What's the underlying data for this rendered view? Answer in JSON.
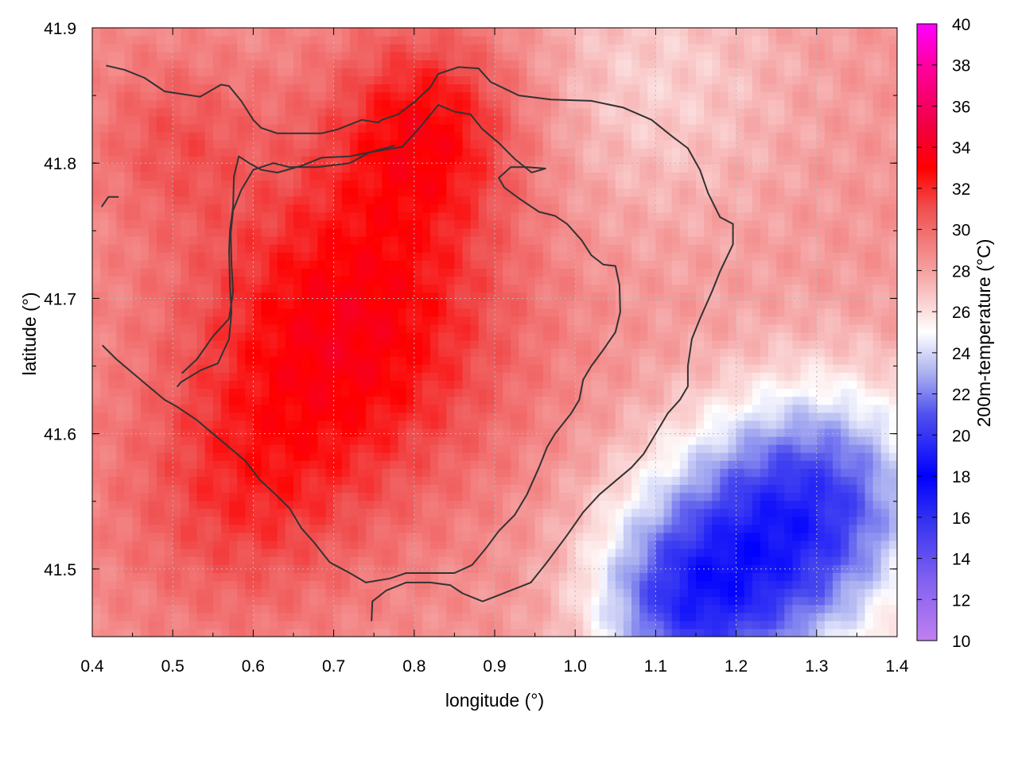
{
  "chart_data": {
    "type": "heatmap",
    "title": "",
    "xlabel": "longitude (°)",
    "ylabel": "latitude (°)",
    "colorbar_label": "200m-temperature (°C)",
    "xlim": [
      0.4,
      1.4
    ],
    "ylim": [
      41.45,
      41.9
    ],
    "x_ticks": [
      "0.4",
      "0.5",
      "0.6",
      "0.7",
      "0.8",
      "0.9",
      "1.0",
      "1.1",
      "1.2",
      "1.3",
      "1.4"
    ],
    "y_ticks": [
      "41.5",
      "41.6",
      "41.7",
      "41.8",
      "41.9"
    ],
    "y_tick_values": [
      41.5,
      41.6,
      41.7,
      41.8,
      41.9
    ],
    "colorbar_ticks": [
      "10",
      "12",
      "14",
      "16",
      "18",
      "20",
      "22",
      "24",
      "26",
      "28",
      "30",
      "32",
      "34",
      "36",
      "38",
      "40"
    ],
    "colorbar_range": [
      10,
      40
    ],
    "grid": true,
    "colormap": [
      {
        "value": 10,
        "color": "#c080f0"
      },
      {
        "value": 13,
        "color": "#8060f0"
      },
      {
        "value": 16,
        "color": "#3030f0"
      },
      {
        "value": 18,
        "color": "#0000ff"
      },
      {
        "value": 21,
        "color": "#5050ee"
      },
      {
        "value": 23,
        "color": "#aab0f0"
      },
      {
        "value": 25,
        "color": "#ffffff"
      },
      {
        "value": 28,
        "color": "#f5a0a0"
      },
      {
        "value": 31,
        "color": "#f05050"
      },
      {
        "value": 33,
        "color": "#ff0000"
      },
      {
        "value": 35,
        "color": "#f00040"
      },
      {
        "value": 38,
        "color": "#ff00a0"
      },
      {
        "value": 40,
        "color": "#ff00ff"
      }
    ],
    "field_model": {
      "base_temperature": 28.5,
      "hotspots": [
        {
          "lon": 0.72,
          "lat": 41.68,
          "amplitude": 5.0,
          "radius": 0.2
        },
        {
          "lon": 0.82,
          "lat": 41.83,
          "amplitude": 4.0,
          "radius": 0.12
        },
        {
          "lon": 0.5,
          "lat": 41.82,
          "amplitude": 2.0,
          "radius": 0.1
        },
        {
          "lon": 0.58,
          "lat": 41.55,
          "amplitude": 2.5,
          "radius": 0.15
        }
      ],
      "coldspots": [
        {
          "lon": 1.2,
          "lat": 41.5,
          "amplitude": 7.0,
          "radius": 0.16
        },
        {
          "lon": 1.32,
          "lat": 41.56,
          "amplitude": 5.5,
          "radius": 0.14
        },
        {
          "lon": 1.12,
          "lat": 41.47,
          "amplitude": 3.5,
          "radius": 0.1
        },
        {
          "lon": 1.1,
          "lat": 41.86,
          "amplitude": 2.0,
          "radius": 0.18
        }
      ]
    },
    "contours": [
      {
        "level": 30,
        "points": [
          [
            0.418,
            41.872
          ],
          [
            0.44,
            41.869
          ],
          [
            0.465,
            41.863
          ],
          [
            0.49,
            41.853
          ],
          [
            0.534,
            41.849
          ],
          [
            0.56,
            41.858
          ],
          [
            0.57,
            41.857
          ],
          [
            0.585,
            41.846
          ],
          [
            0.6,
            41.832
          ],
          [
            0.61,
            41.826
          ],
          [
            0.63,
            41.822
          ],
          [
            0.66,
            41.822
          ],
          [
            0.685,
            41.822
          ],
          [
            0.705,
            41.825
          ],
          [
            0.735,
            41.832
          ],
          [
            0.755,
            41.83
          ],
          [
            0.76,
            41.832
          ],
          [
            0.78,
            41.836
          ],
          [
            0.8,
            41.845
          ],
          [
            0.82,
            41.856
          ],
          [
            0.83,
            41.866
          ],
          [
            0.855,
            41.871
          ],
          [
            0.88,
            41.87
          ],
          [
            0.895,
            41.86
          ],
          [
            0.93,
            41.85
          ],
          [
            0.97,
            41.847
          ],
          [
            1.02,
            41.846
          ],
          [
            1.06,
            41.841
          ],
          [
            1.095,
            41.832
          ],
          [
            1.12,
            41.82
          ],
          [
            1.14,
            41.811
          ],
          [
            1.155,
            41.795
          ],
          [
            1.165,
            41.778
          ],
          [
            1.18,
            41.76
          ],
          [
            1.196,
            41.755
          ],
          [
            1.196,
            41.74
          ],
          [
            1.18,
            41.72
          ],
          [
            1.17,
            41.705
          ],
          [
            1.155,
            41.685
          ],
          [
            1.145,
            41.67
          ],
          [
            1.14,
            41.65
          ],
          [
            1.14,
            41.635
          ],
          [
            1.13,
            41.625
          ],
          [
            1.115,
            41.615
          ],
          [
            1.1,
            41.6
          ],
          [
            1.085,
            41.585
          ],
          [
            1.07,
            41.575
          ],
          [
            1.05,
            41.565
          ],
          [
            1.03,
            41.555
          ],
          [
            1.01,
            41.542
          ],
          [
            0.99,
            41.525
          ],
          [
            0.965,
            41.505
          ],
          [
            0.945,
            41.49
          ],
          [
            0.915,
            41.483
          ],
          [
            0.885,
            41.476
          ],
          [
            0.86,
            41.482
          ],
          [
            0.845,
            41.488
          ],
          [
            0.82,
            41.49
          ],
          [
            0.79,
            41.49
          ],
          [
            0.765,
            41.484
          ],
          [
            0.748,
            41.476
          ],
          [
            0.747,
            41.462
          ]
        ]
      },
      {
        "level": 30,
        "points": [
          [
            0.506,
            41.635
          ],
          [
            0.51,
            41.638
          ],
          [
            0.535,
            41.647
          ],
          [
            0.556,
            41.652
          ],
          [
            0.57,
            41.67
          ],
          [
            0.573,
            41.69
          ],
          [
            0.571,
            41.71
          ],
          [
            0.57,
            41.735
          ],
          [
            0.571,
            41.75
          ],
          [
            0.575,
            41.768
          ],
          [
            0.576,
            41.79
          ],
          [
            0.582,
            41.805
          ],
          [
            0.595,
            41.8
          ],
          [
            0.61,
            41.795
          ],
          [
            0.63,
            41.793
          ],
          [
            0.66,
            41.798
          ],
          [
            0.685,
            41.804
          ],
          [
            0.72,
            41.805
          ],
          [
            0.745,
            41.808
          ],
          [
            0.785,
            41.812
          ],
          [
            0.805,
            41.825
          ],
          [
            0.83,
            41.843
          ],
          [
            0.85,
            41.838
          ],
          [
            0.87,
            41.836
          ],
          [
            0.885,
            41.825
          ],
          [
            0.905,
            41.815
          ],
          [
            0.925,
            41.803
          ],
          [
            0.946,
            41.793
          ],
          [
            0.963,
            41.796
          ],
          [
            0.94,
            41.797
          ],
          [
            0.92,
            41.797
          ],
          [
            0.905,
            41.789
          ],
          [
            0.912,
            41.782
          ],
          [
            0.93,
            41.774
          ],
          [
            0.955,
            41.764
          ],
          [
            0.975,
            41.761
          ],
          [
            0.99,
            41.755
          ],
          [
            1.008,
            41.743
          ],
          [
            1.02,
            41.732
          ],
          [
            1.035,
            41.725
          ],
          [
            1.05,
            41.724
          ],
          [
            1.055,
            41.71
          ],
          [
            1.056,
            41.69
          ],
          [
            1.05,
            41.675
          ],
          [
            1.035,
            41.662
          ],
          [
            1.02,
            41.65
          ],
          [
            1.01,
            41.64
          ],
          [
            1.005,
            41.625
          ],
          [
            0.995,
            41.615
          ],
          [
            0.975,
            41.6
          ],
          [
            0.965,
            41.59
          ],
          [
            0.955,
            41.575
          ],
          [
            0.94,
            41.555
          ],
          [
            0.925,
            41.54
          ],
          [
            0.905,
            41.528
          ],
          [
            0.89,
            41.516
          ],
          [
            0.872,
            41.503
          ],
          [
            0.85,
            41.497
          ],
          [
            0.82,
            41.497
          ],
          [
            0.79,
            41.497
          ],
          [
            0.77,
            41.493
          ],
          [
            0.74,
            41.49
          ],
          [
            0.72,
            41.497
          ],
          [
            0.695,
            41.505
          ],
          [
            0.675,
            41.52
          ],
          [
            0.66,
            41.53
          ],
          [
            0.645,
            41.545
          ],
          [
            0.628,
            41.555
          ],
          [
            0.608,
            41.566
          ],
          [
            0.59,
            41.58
          ],
          [
            0.57,
            41.59
          ],
          [
            0.55,
            41.6
          ],
          [
            0.53,
            41.61
          ],
          [
            0.505,
            41.62
          ],
          [
            0.49,
            41.625
          ],
          [
            0.47,
            41.635
          ],
          [
            0.45,
            41.645
          ],
          [
            0.43,
            41.655
          ],
          [
            0.413,
            41.665
          ]
        ]
      },
      {
        "level": 32,
        "points": [
          [
            0.432,
            41.775
          ],
          [
            0.42,
            41.775
          ],
          [
            0.412,
            41.768
          ]
        ]
      },
      {
        "level": 32,
        "points": [
          [
            0.512,
            41.645
          ],
          [
            0.53,
            41.655
          ],
          [
            0.55,
            41.672
          ],
          [
            0.57,
            41.685
          ],
          [
            0.575,
            41.705
          ],
          [
            0.573,
            41.725
          ],
          [
            0.572,
            41.748
          ],
          [
            0.575,
            41.765
          ],
          [
            0.585,
            41.78
          ],
          [
            0.6,
            41.795
          ],
          [
            0.625,
            41.8
          ],
          [
            0.645,
            41.797
          ],
          [
            0.68,
            41.797
          ],
          [
            0.72,
            41.8
          ],
          [
            0.745,
            41.808
          ],
          [
            0.77,
            41.812
          ],
          [
            0.775,
            41.813
          ]
        ]
      }
    ]
  }
}
